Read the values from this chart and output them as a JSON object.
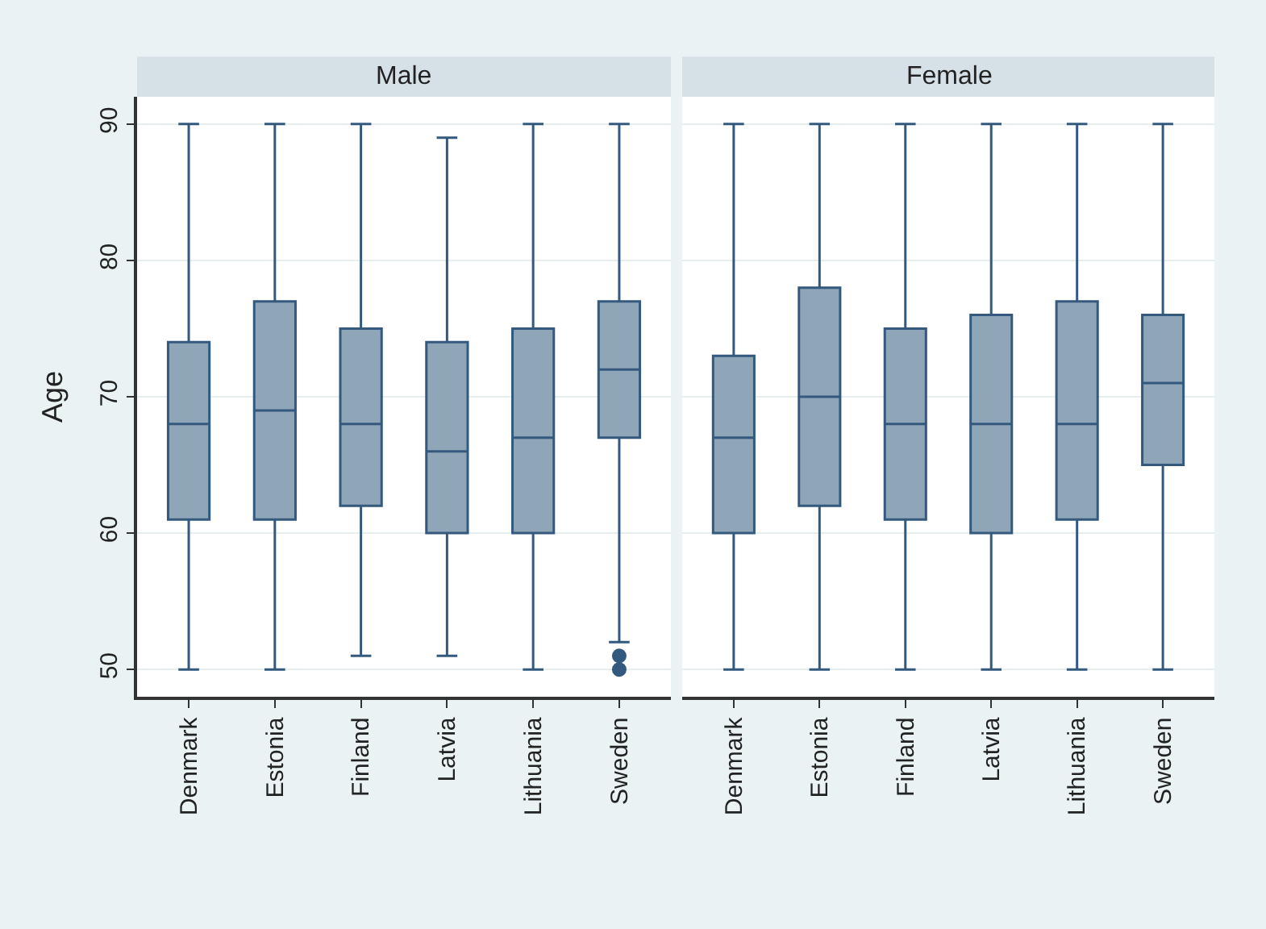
{
  "chart_data": [
    {
      "type": "box",
      "title": "Male",
      "ylabel": "Age",
      "categories": [
        "Denmark",
        "Estonia",
        "Finland",
        "Latvia",
        "Lithuania",
        "Sweden"
      ],
      "boxes": [
        {
          "low": 50,
          "q1": 61,
          "median": 68,
          "q3": 74,
          "high": 90
        },
        {
          "low": 50,
          "q1": 61,
          "median": 69,
          "q3": 77,
          "high": 90
        },
        {
          "low": 51,
          "q1": 62,
          "median": 68,
          "q3": 75,
          "high": 90
        },
        {
          "low": 51,
          "q1": 60,
          "median": 66,
          "q3": 74,
          "high": 89
        },
        {
          "low": 50,
          "q1": 60,
          "median": 67,
          "q3": 75,
          "high": 90
        },
        {
          "low": 52,
          "q1": 67,
          "median": 72,
          "q3": 77,
          "high": 90,
          "outliers": [
            50,
            51
          ]
        }
      ],
      "color": "#8fa5b8",
      "ylim": [
        48,
        92
      ],
      "yticks": [
        50,
        60,
        70,
        80,
        90
      ],
      "grid": "y"
    },
    {
      "type": "box",
      "title": "Female",
      "categories": [
        "Denmark",
        "Estonia",
        "Finland",
        "Latvia",
        "Lithuania",
        "Sweden"
      ],
      "boxes": [
        {
          "low": 50,
          "q1": 60,
          "median": 67,
          "q3": 73,
          "high": 90
        },
        {
          "low": 50,
          "q1": 62,
          "median": 70,
          "q3": 78,
          "high": 90
        },
        {
          "low": 50,
          "q1": 61,
          "median": 68,
          "q3": 75,
          "high": 90
        },
        {
          "low": 50,
          "q1": 60,
          "median": 68,
          "q3": 76,
          "high": 90
        },
        {
          "low": 50,
          "q1": 61,
          "median": 68,
          "q3": 77,
          "high": 90
        },
        {
          "low": 50,
          "q1": 65,
          "median": 71,
          "q3": 76,
          "high": 90
        }
      ],
      "color": "#8fa5b8",
      "ylim": [
        48,
        92
      ],
      "yticks": [
        50,
        60,
        70,
        80,
        90
      ],
      "grid": "y",
      "tick_labels": "x"
    }
  ]
}
